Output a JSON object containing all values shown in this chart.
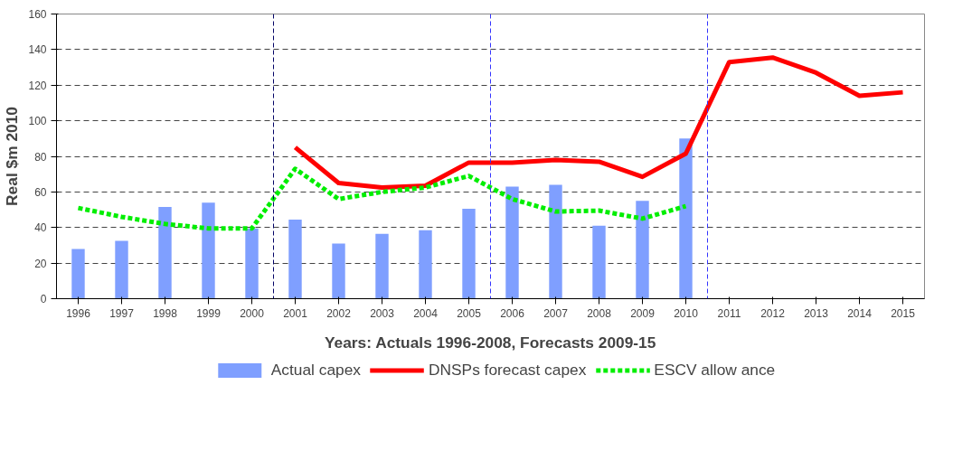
{
  "chart_data": {
    "type": "bar",
    "xlabel": "Years: Actuals 1996-2008, Forecasts 2009-15",
    "ylabel": "Real $m 2010",
    "x": [
      1996,
      1997,
      1998,
      1999,
      2000,
      2001,
      2002,
      2003,
      2004,
      2005,
      2006,
      2007,
      2008,
      2009,
      2010,
      2011,
      2012,
      2013,
      2014,
      2015
    ],
    "series": [
      {
        "name": "Actual capex",
        "color": "#7f9fff",
        "values": [
          28,
          32.5,
          51.5,
          54,
          39.5,
          44.5,
          31,
          36.5,
          38.5,
          50.5,
          63,
          64,
          41,
          55,
          90,
          null,
          null,
          null,
          null,
          null
        ]
      },
      {
        "name": "DNSPs forecast capex",
        "type": "line",
        "line_style": "solid",
        "color": "#ff0000",
        "values": [
          null,
          null,
          null,
          null,
          null,
          85,
          65,
          62.5,
          63.5,
          76.5,
          76.5,
          78,
          77,
          68.5,
          81.5,
          133,
          135.5,
          127,
          114,
          116
        ]
      },
      {
        "name": "ESCV allow ance",
        "type": "line",
        "line_style": "dashed",
        "color": "#00ee00",
        "values": [
          51,
          46,
          42,
          39.5,
          39.5,
          73,
          56,
          60,
          62.5,
          69,
          56,
          49,
          49.5,
          45,
          52,
          null,
          null,
          null,
          null,
          null
        ]
      }
    ],
    "xlim": [
      1995.5,
      2015.5
    ],
    "xticks": [
      1996,
      1997,
      1998,
      1999,
      2000,
      2001,
      2002,
      2003,
      2004,
      2005,
      2006,
      2007,
      2008,
      2009,
      2010,
      2011,
      2012,
      2013,
      2014,
      2015
    ],
    "ylim": [
      0,
      160
    ],
    "yticks": [
      0,
      20,
      40,
      60,
      80,
      100,
      120,
      140,
      160
    ],
    "ref_lines": [
      {
        "axis": "x",
        "value": 2000.5,
        "color": "#000066",
        "line_style": "dashed"
      },
      {
        "axis": "x",
        "value": 2005.5,
        "color": "#3333ff",
        "line_style": "dashed"
      },
      {
        "axis": "x",
        "value": 2010.5,
        "color": "#3333ff",
        "line_style": "dashed"
      }
    ],
    "grid": "y",
    "legend": "bottom"
  }
}
